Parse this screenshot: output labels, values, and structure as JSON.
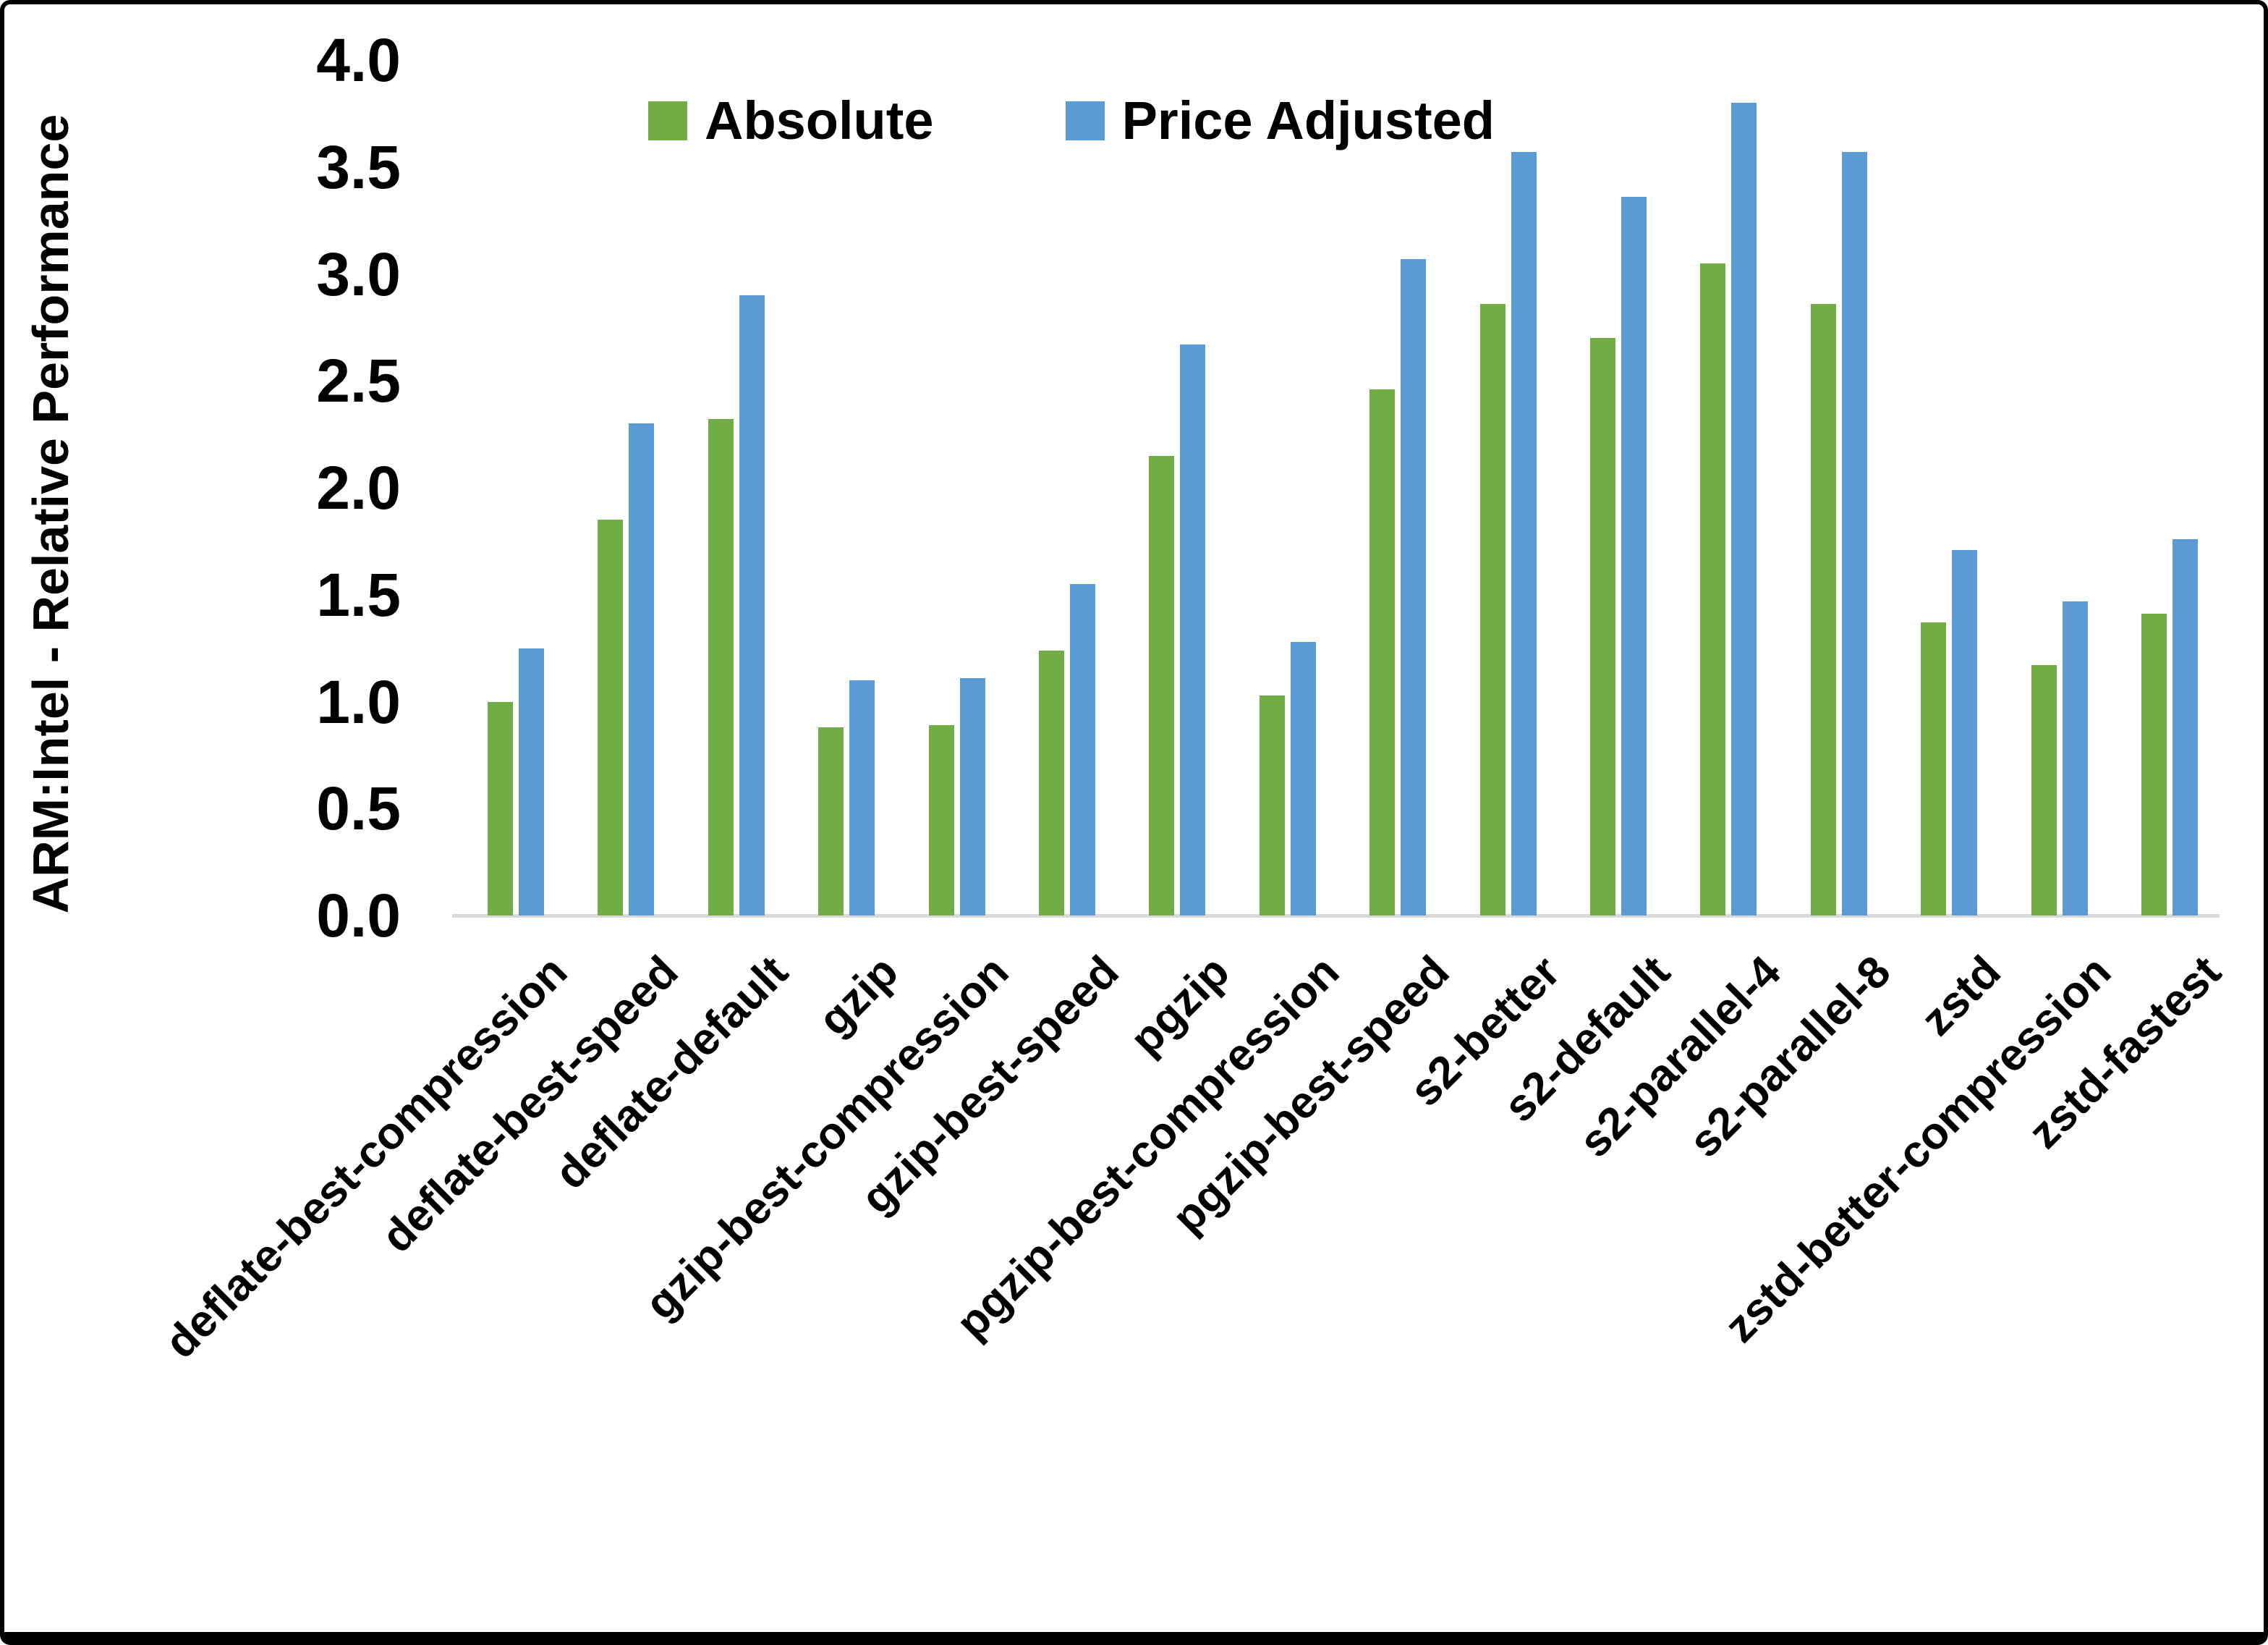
{
  "chart_data": {
    "type": "bar",
    "title": "",
    "xlabel": "",
    "ylabel": "ARM:Intel - Relative Performance",
    "ylim": [
      0.0,
      4.0
    ],
    "ytick_step": 0.5,
    "ytick_labels": [
      "0.0",
      "0.5",
      "1.0",
      "1.5",
      "2.0",
      "2.5",
      "3.0",
      "3.5",
      "4.0"
    ],
    "grid": false,
    "legend_position": "top-center",
    "categories": [
      "deflate-best-compression",
      "deflate-best-speed",
      "deflate-default",
      "gzip",
      "gzip-best-compression",
      "gzip-best-speed",
      "pgzip",
      "pgzip-best-compression",
      "pgzip-best-speed",
      "s2-better",
      "s2-default",
      "s2-parallel-4",
      "s2-parallel-8",
      "zstd",
      "zstd-better-compression",
      "zstd-fastest"
    ],
    "series": [
      {
        "name": "Absolute",
        "color": "#70AD47",
        "values": [
          1.0,
          1.85,
          2.32,
          0.88,
          0.89,
          1.24,
          2.15,
          1.03,
          2.46,
          2.86,
          2.7,
          3.05,
          2.86,
          1.37,
          1.17,
          1.41
        ]
      },
      {
        "name": "Price Adjusted",
        "color": "#5B9BD5",
        "values": [
          1.25,
          2.3,
          2.9,
          1.1,
          1.11,
          1.55,
          2.67,
          1.28,
          3.07,
          3.57,
          3.36,
          3.8,
          3.57,
          1.71,
          1.47,
          1.76
        ]
      }
    ],
    "axis_line_color": "#d9d9d9"
  }
}
